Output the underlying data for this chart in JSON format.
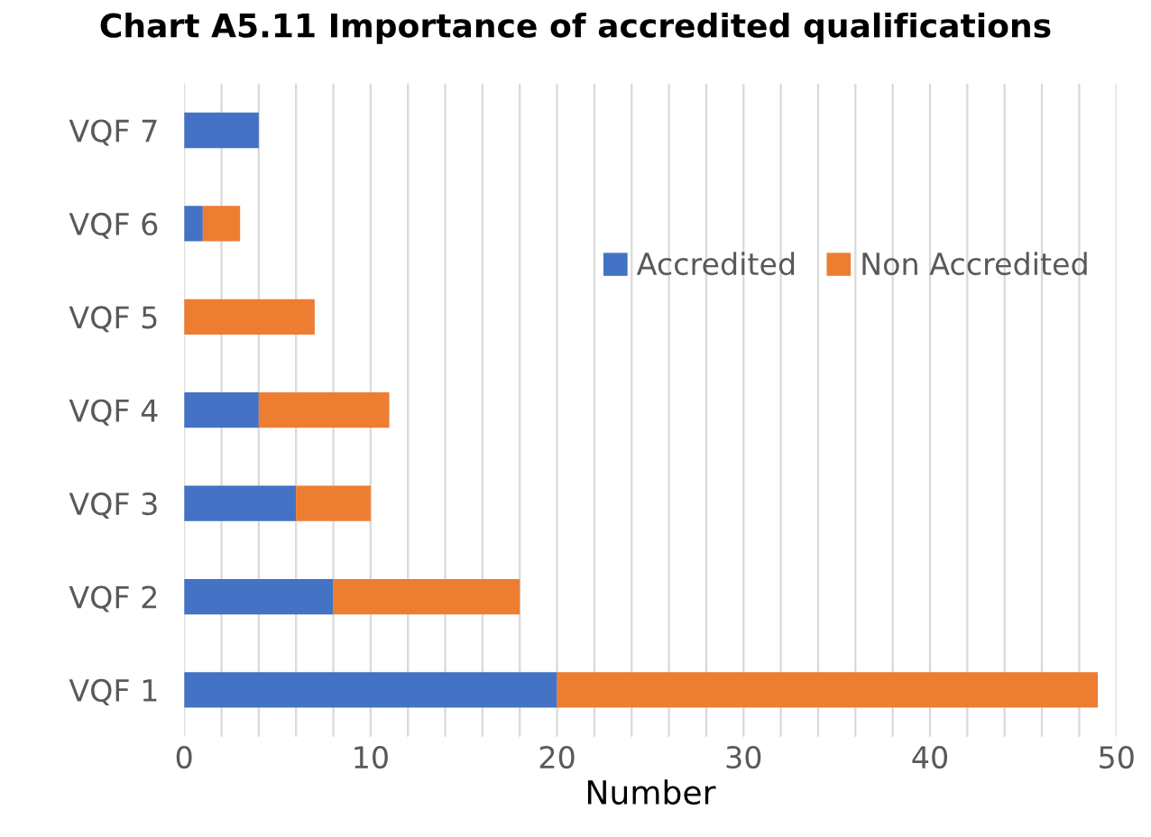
{
  "chart_data": {
    "type": "bar",
    "orientation": "horizontal",
    "stacked": true,
    "title": "Chart A5.11 Importance of accredited qualifications",
    "xlabel": "Number",
    "categories": [
      "VQF 7",
      "VQF 6",
      "VQF 5",
      "VQF 4",
      "VQF 3",
      "VQF 2",
      "VQF 1"
    ],
    "series": [
      {
        "name": "Accredited",
        "color": "#4472c4",
        "values": [
          4,
          1,
          0,
          4,
          6,
          8,
          20
        ]
      },
      {
        "name": "Non Accredited",
        "color": "#ed7d31",
        "values": [
          0,
          2,
          7,
          7,
          4,
          10,
          29
        ]
      }
    ],
    "xlim": [
      0,
      50
    ],
    "xticks": [
      0,
      {
        "value": 2,
        "label": null
      },
      {
        "value": 4,
        "label": null
      },
      {
        "value": 6,
        "label": null
      },
      {
        "value": 8,
        "label": null
      },
      10,
      {
        "value": 12,
        "label": null
      },
      {
        "value": 14,
        "label": null
      },
      {
        "value": 16,
        "label": null
      },
      {
        "value": 18,
        "label": null
      },
      20,
      {
        "value": 22,
        "label": null
      },
      {
        "value": 24,
        "label": null
      },
      {
        "value": 26,
        "label": null
      },
      {
        "value": 28,
        "label": null
      },
      30,
      {
        "value": 32,
        "label": null
      },
      {
        "value": 34,
        "label": null
      },
      {
        "value": 36,
        "label": null
      },
      {
        "value": 38,
        "label": null
      },
      40,
      {
        "value": 42,
        "label": null
      },
      {
        "value": 44,
        "label": null
      },
      {
        "value": 46,
        "label": null
      },
      {
        "value": 48,
        "label": null
      },
      50
    ],
    "grid": "x",
    "legend": "right"
  }
}
